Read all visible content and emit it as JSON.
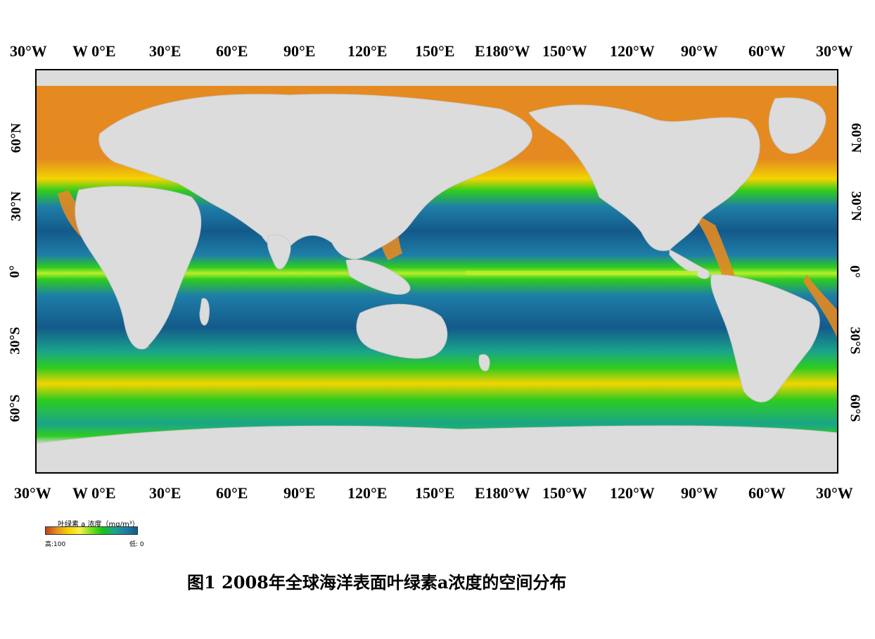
{
  "top_axis": [
    "30°W",
    "W 0°E",
    "30°E",
    "60°E",
    "90°E",
    "120°E",
    "150°E",
    "E180°W",
    "150°W",
    "120°W",
    "90°W",
    "60°W",
    "30°W"
  ],
  "bottom_axis": [
    "30°W",
    "W 0°E",
    "30°E",
    "60°E",
    "90°E",
    "120°E",
    "150°E",
    "E180°W",
    "150°W",
    "120°W",
    "90°W",
    "60°W",
    "30°W"
  ],
  "left_axis": [
    "60°N",
    "30°N",
    "0°",
    "30°S",
    "60°S"
  ],
  "right_axis": [
    "60°N",
    "30°N",
    "0°",
    "30°S",
    "60°S"
  ],
  "legend": {
    "title": "叶绿素 a 浓度（mg/m³）",
    "high_label": "高:100",
    "low_label": "低: 0",
    "gradient_colors": [
      "#c0401c",
      "#e8911f",
      "#f3d400",
      "#f7f24a",
      "#78e01c",
      "#12c21a",
      "#1aa58a",
      "#1e7ea8",
      "#145a8a"
    ]
  },
  "colors": {
    "land": "#dcdcdc",
    "ocean_high": "#e48a20",
    "ocean_mid": "#2ecc1e",
    "ocean_low": "#135a8a"
  },
  "caption": "图1  2008年全球海洋表面叶绿素a浓度的空间分布"
}
